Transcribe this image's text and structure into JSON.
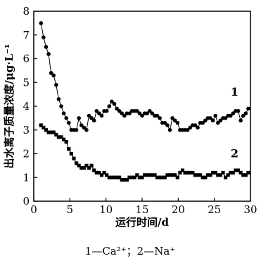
{
  "chart_data": {
    "type": "line",
    "xlabel": "运行时间/d",
    "ylabel": "出水离子质量浓度/μg·L⁻¹",
    "xlim": [
      0,
      30
    ],
    "ylim": [
      0,
      8
    ],
    "xticks": [
      0,
      5,
      10,
      15,
      20,
      25,
      30
    ],
    "yticks": [
      0,
      1,
      2,
      3,
      4,
      5,
      6,
      7,
      8
    ],
    "grid": false,
    "series": [
      {
        "name": "1",
        "marker": "circle",
        "x": [
          1.0,
          1.35,
          1.7,
          2.05,
          2.4,
          2.75,
          3.1,
          3.45,
          3.8,
          4.15,
          4.5,
          4.85,
          5.2,
          5.55,
          5.9,
          6.25,
          6.6,
          6.95,
          7.3,
          7.65,
          8.0,
          8.35,
          8.7,
          9.05,
          9.4,
          9.75,
          10.1,
          10.45,
          10.8,
          11.15,
          11.5,
          11.85,
          12.2,
          12.55,
          12.9,
          13.25,
          13.6,
          13.95,
          14.3,
          14.65,
          15.0,
          15.35,
          15.7,
          16.05,
          16.4,
          16.75,
          17.1,
          17.45,
          17.8,
          18.15,
          18.5,
          18.85,
          19.2,
          19.55,
          19.9,
          20.25,
          20.6,
          20.95,
          21.3,
          21.65,
          22.0,
          22.35,
          22.7,
          23.05,
          23.4,
          23.75,
          24.1,
          24.45,
          24.8,
          25.15,
          25.5,
          25.85,
          26.2,
          26.55,
          26.9,
          27.25,
          27.6,
          27.95,
          28.3,
          28.65,
          29.0,
          29.35,
          29.7
        ],
        "y": [
          7.5,
          6.9,
          6.5,
          6.2,
          5.4,
          5.3,
          4.9,
          4.3,
          4.0,
          3.7,
          3.5,
          3.3,
          3.0,
          3.0,
          3.0,
          3.5,
          3.2,
          3.1,
          3.0,
          3.6,
          3.5,
          3.4,
          3.8,
          3.7,
          3.6,
          3.8,
          3.8,
          4.0,
          4.2,
          4.1,
          3.9,
          3.8,
          3.7,
          3.6,
          3.7,
          3.7,
          3.8,
          3.8,
          3.8,
          3.7,
          3.6,
          3.7,
          3.7,
          3.8,
          3.7,
          3.6,
          3.6,
          3.5,
          3.3,
          3.3,
          3.2,
          3.0,
          3.5,
          3.4,
          3.3,
          3.0,
          3.0,
          3.0,
          3.0,
          3.1,
          3.2,
          3.2,
          3.1,
          3.3,
          3.3,
          3.4,
          3.5,
          3.5,
          3.4,
          3.6,
          3.3,
          3.4,
          3.5,
          3.5,
          3.6,
          3.6,
          3.7,
          3.8,
          3.8,
          3.4,
          3.6,
          3.7,
          3.9
        ],
        "color": "#000000"
      },
      {
        "name": "2",
        "marker": "square",
        "x": [
          1.0,
          1.35,
          1.7,
          2.05,
          2.4,
          2.75,
          3.1,
          3.45,
          3.8,
          4.15,
          4.5,
          4.85,
          5.2,
          5.55,
          5.9,
          6.25,
          6.6,
          6.95,
          7.3,
          7.65,
          8.0,
          8.35,
          8.7,
          9.05,
          9.4,
          9.75,
          10.1,
          10.45,
          10.8,
          11.15,
          11.5,
          11.85,
          12.2,
          12.55,
          12.9,
          13.25,
          13.6,
          13.95,
          14.3,
          14.65,
          15.0,
          15.35,
          15.7,
          16.05,
          16.4,
          16.75,
          17.1,
          17.45,
          17.8,
          18.15,
          18.5,
          18.85,
          19.2,
          19.55,
          19.9,
          20.25,
          20.6,
          20.95,
          21.3,
          21.65,
          22.0,
          22.35,
          22.7,
          23.05,
          23.4,
          23.75,
          24.1,
          24.45,
          24.8,
          25.15,
          25.5,
          25.85,
          26.2,
          26.55,
          26.9,
          27.25,
          27.6,
          27.95,
          28.3,
          28.65,
          29.0,
          29.35,
          29.7
        ],
        "y": [
          3.2,
          3.1,
          3.0,
          2.9,
          2.9,
          2.9,
          2.8,
          2.7,
          2.7,
          2.6,
          2.5,
          2.2,
          2.0,
          1.8,
          1.6,
          1.5,
          1.4,
          1.4,
          1.5,
          1.4,
          1.5,
          1.3,
          1.2,
          1.2,
          1.1,
          1.2,
          1.1,
          1.0,
          1.0,
          1.0,
          1.0,
          1.0,
          0.9,
          0.9,
          0.9,
          1.0,
          1.0,
          1.0,
          1.1,
          1.0,
          1.0,
          1.1,
          1.1,
          1.1,
          1.1,
          1.1,
          1.0,
          1.0,
          1.0,
          1.0,
          1.1,
          1.1,
          1.1,
          1.1,
          1.0,
          1.2,
          1.3,
          1.2,
          1.2,
          1.2,
          1.2,
          1.1,
          1.1,
          1.1,
          1.0,
          1.0,
          1.1,
          1.1,
          1.2,
          1.2,
          1.1,
          1.1,
          1.2,
          1.0,
          1.1,
          1.2,
          1.2,
          1.3,
          1.3,
          1.2,
          1.1,
          1.1,
          1.2
        ],
        "color": "#000000"
      }
    ],
    "annotations": [
      {
        "text": "1",
        "x": 27.8,
        "y": 4.45
      },
      {
        "text": "2",
        "x": 27.8,
        "y": 1.85
      }
    ]
  },
  "caption": "1—Ca²⁺；2—Na⁺"
}
